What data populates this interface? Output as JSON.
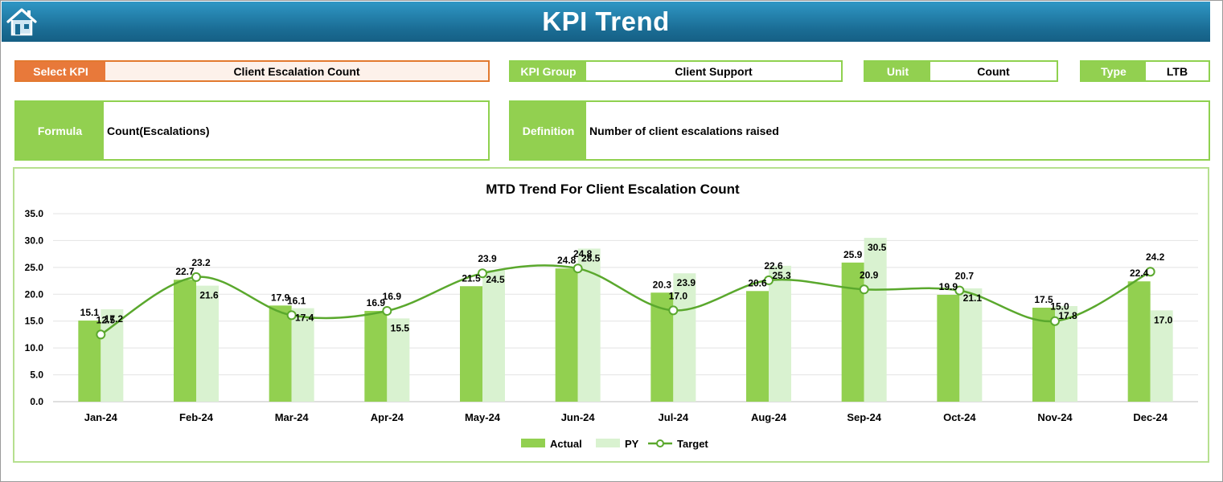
{
  "header": {
    "title": "KPI Trend",
    "home_icon": "home-icon"
  },
  "fields": {
    "select_kpi": {
      "label": "Select KPI",
      "value": "Client Escalation Count"
    },
    "kpi_group": {
      "label": "KPI Group",
      "value": "Client Support"
    },
    "unit": {
      "label": "Unit",
      "value": "Count"
    },
    "type": {
      "label": "Type",
      "value": "LTB"
    },
    "formula": {
      "label": "Formula",
      "value": "Count(Escalations)"
    },
    "definition": {
      "label": "Definition",
      "value": "Number of client escalations raised"
    }
  },
  "colors": {
    "actual": "#92d050",
    "py": "#d9f2d0",
    "target": "#5aa82d",
    "accent": "#e8793a"
  },
  "chart_data": {
    "type": "bar",
    "title": "MTD Trend For Client Escalation Count",
    "categories": [
      "Jan-24",
      "Feb-24",
      "Mar-24",
      "Apr-24",
      "May-24",
      "Jun-24",
      "Jul-24",
      "Aug-24",
      "Sep-24",
      "Oct-24",
      "Nov-24",
      "Dec-24"
    ],
    "series": [
      {
        "name": "Actual",
        "type": "bar",
        "values": [
          15.1,
          22.7,
          17.9,
          16.9,
          21.5,
          24.8,
          20.3,
          20.6,
          25.9,
          19.9,
          17.5,
          22.4
        ]
      },
      {
        "name": "PY",
        "type": "bar",
        "values": [
          17.2,
          21.6,
          17.4,
          15.5,
          24.5,
          28.5,
          23.9,
          25.3,
          30.5,
          21.1,
          17.8,
          17.0
        ]
      },
      {
        "name": "Target",
        "type": "line",
        "smooth": true,
        "values": [
          12.5,
          23.2,
          16.1,
          16.9,
          23.9,
          24.8,
          17.0,
          22.6,
          20.9,
          20.7,
          15.0,
          24.2
        ]
      }
    ],
    "ylim": [
      0,
      35
    ],
    "yticks": [
      "0.0",
      "5.0",
      "10.0",
      "15.0",
      "20.0",
      "25.0",
      "30.0",
      "35.0"
    ],
    "grid": true,
    "legend": "bottom"
  }
}
